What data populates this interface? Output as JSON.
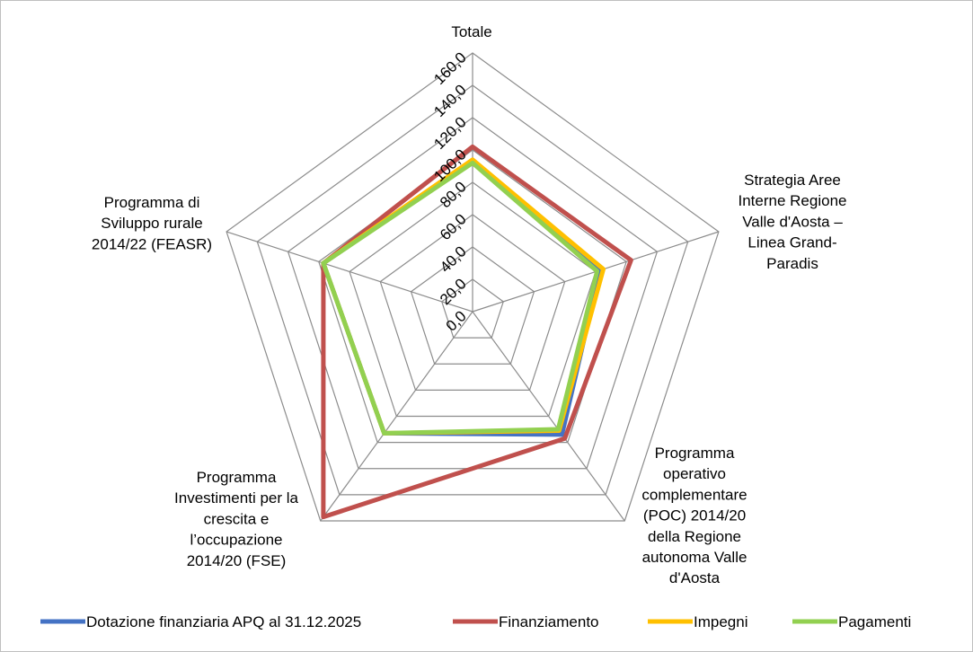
{
  "chart_data": {
    "type": "radar",
    "title": "",
    "categories": [
      "Totale",
      "Strategia Aree Interne Regione Valle d'Aosta – Linea Grand-Paradis",
      "Programma operativo complementare (POC) 2014/20 della Regione autonoma Valle d'Aosta",
      "Programma Investimenti per la crescita e l’occupazione 2014/20 (FSE)",
      "Programma di Sviluppo rurale 2014/22 (FEASR)"
    ],
    "category_lines": [
      [
        "Totale"
      ],
      [
        "Strategia Aree",
        "Interne Regione",
        "Valle d'Aosta –",
        "Linea Grand-",
        "Paradis"
      ],
      [
        "Programma",
        "operativo",
        "complementare",
        "(POC) 2014/20",
        "della Regione",
        "autonoma Valle",
        "d'Aosta"
      ],
      [
        "Programma",
        "Investimenti per la",
        "crescita e",
        "l’occupazione",
        "2014/20 (FSE)"
      ],
      [
        "Programma di",
        "Sviluppo rurale",
        "2014/22 (FEASR)"
      ]
    ],
    "axis": {
      "min": 0,
      "max": 160,
      "step": 20,
      "tick_labels": [
        "0,0",
        "20,0",
        "40,0",
        "60,0",
        "80,0",
        "100,0",
        "120,0",
        "140,0",
        "160,0"
      ]
    },
    "series": [
      {
        "name": "Dotazione finanziaria APQ al 31.12.2025",
        "color": "#4472c4",
        "values": [
          93,
          83,
          94,
          93,
          97
        ]
      },
      {
        "name": "Finanziamento",
        "color": "#c0504d",
        "values": [
          102,
          103,
          97,
          157,
          97
        ]
      },
      {
        "name": "Impegni",
        "color": "#ffc000",
        "values": [
          94,
          85,
          91,
          93,
          97
        ]
      },
      {
        "name": "Pagamenti",
        "color": "#92d050",
        "values": [
          92,
          81,
          90,
          93,
          97
        ]
      }
    ],
    "legend_position": "bottom",
    "grid": true
  }
}
